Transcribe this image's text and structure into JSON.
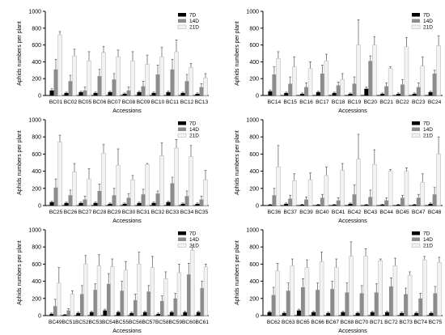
{
  "legend": [
    {
      "key": "d7",
      "label": "7D",
      "color": "#000000"
    },
    {
      "key": "d14",
      "label": "14D",
      "color": "#8c8c8c"
    },
    {
      "key": "d21",
      "label": "21D",
      "color": "#f2f2f2"
    }
  ],
  "chart_data": [
    {
      "type": "bar",
      "ylabel": "Aphids numbers per plant",
      "xlabel": "Accessions",
      "ylim": [
        0,
        1000
      ],
      "yticks": [
        0,
        200,
        400,
        600,
        800,
        1000
      ],
      "categories": [
        "BC01",
        "BC02",
        "BC05",
        "BC06",
        "BC07",
        "BC08",
        "BC09",
        "BC10",
        "BC11",
        "BC12",
        "BC13"
      ],
      "series": [
        {
          "name": "7D",
          "values": [
            60,
            30,
            40,
            30,
            40,
            20,
            40,
            30,
            40,
            30,
            20
          ],
          "errors": [
            20,
            10,
            10,
            10,
            10,
            10,
            10,
            10,
            15,
            10,
            10
          ]
        },
        {
          "name": "14D",
          "values": [
            310,
            170,
            60,
            230,
            190,
            60,
            110,
            250,
            310,
            170,
            100
          ],
          "errors": [
            120,
            70,
            40,
            80,
            70,
            40,
            60,
            110,
            120,
            80,
            40
          ]
        },
        {
          "name": "21D",
          "values": [
            720,
            470,
            410,
            510,
            460,
            410,
            370,
            460,
            520,
            330,
            210
          ],
          "errors": [
            40,
            80,
            110,
            70,
            80,
            110,
            110,
            110,
            140,
            50,
            50
          ]
        }
      ]
    },
    {
      "type": "bar",
      "ylabel": "Aphids numbers per plant",
      "xlabel": "Accessions",
      "ylim": [
        0,
        1000
      ],
      "yticks": [
        0,
        200,
        400,
        600,
        800,
        1000
      ],
      "categories": [
        "BC14",
        "BC15",
        "BC16",
        "BC17",
        "BC18",
        "BC19",
        "BC20",
        "BC21",
        "BC22",
        "BC23",
        "BC24"
      ],
      "series": [
        {
          "name": "7D",
          "values": [
            50,
            30,
            20,
            40,
            30,
            20,
            80,
            20,
            20,
            20,
            40
          ],
          "errors": [
            15,
            10,
            10,
            10,
            10,
            10,
            20,
            10,
            10,
            10,
            10
          ]
        },
        {
          "name": "14D",
          "values": [
            250,
            140,
            100,
            260,
            120,
            140,
            410,
            110,
            130,
            100,
            260
          ],
          "errors": [
            90,
            80,
            50,
            100,
            40,
            80,
            60,
            40,
            60,
            50,
            40
          ]
        },
        {
          "name": "21D",
          "values": [
            440,
            340,
            320,
            410,
            190,
            600,
            600,
            320,
            580,
            350,
            590
          ],
          "errors": [
            80,
            120,
            80,
            80,
            70,
            300,
            100,
            20,
            110,
            110,
            120
          ]
        }
      ]
    },
    {
      "type": "bar",
      "ylabel": "Aphids numbers per plant",
      "xlabel": "Accessions",
      "ylim": [
        0,
        1000
      ],
      "yticks": [
        0,
        200,
        400,
        600,
        800,
        1000
      ],
      "categories": [
        "BC25",
        "BC26",
        "BC27",
        "BC28",
        "BC29",
        "BC30",
        "BC31",
        "BC32",
        "BC33",
        "BC34",
        "BC35"
      ],
      "series": [
        {
          "name": "7D",
          "values": [
            40,
            30,
            30,
            30,
            20,
            20,
            30,
            30,
            40,
            20,
            20
          ],
          "errors": [
            10,
            10,
            10,
            10,
            10,
            10,
            10,
            10,
            10,
            10,
            10
          ]
        },
        {
          "name": "14D",
          "values": [
            210,
            120,
            70,
            170,
            120,
            90,
            130,
            140,
            260,
            110,
            70
          ],
          "errors": [
            100,
            60,
            40,
            80,
            80,
            50,
            60,
            30,
            70,
            60,
            40
          ]
        },
        {
          "name": "21D",
          "values": [
            740,
            390,
            310,
            610,
            470,
            300,
            480,
            580,
            670,
            570,
            300
          ],
          "errors": [
            80,
            100,
            120,
            100,
            190,
            50,
            10,
            150,
            100,
            130,
            110
          ]
        }
      ]
    },
    {
      "type": "bar",
      "ylabel": "Aphids numbers per plant",
      "xlabel": "Accessions",
      "ylim": [
        0,
        1000
      ],
      "yticks": [
        0,
        200,
        400,
        600,
        800,
        1000
      ],
      "categories": [
        "BC36",
        "BC37",
        "BC39",
        "BC40",
        "BC41",
        "BC42",
        "BC43",
        "BC44",
        "BC45",
        "BC47",
        "BC48"
      ],
      "series": [
        {
          "name": "7D",
          "values": [
            10,
            20,
            10,
            10,
            10,
            20,
            10,
            10,
            10,
            10,
            20
          ],
          "errors": [
            5,
            10,
            5,
            5,
            5,
            10,
            5,
            5,
            5,
            5,
            10
          ]
        },
        {
          "name": "14D",
          "values": [
            120,
            80,
            70,
            90,
            60,
            130,
            100,
            60,
            90,
            90,
            130
          ],
          "errors": [
            80,
            40,
            30,
            40,
            30,
            110,
            80,
            30,
            30,
            40,
            80
          ]
        },
        {
          "name": "21D",
          "values": [
            450,
            290,
            300,
            350,
            410,
            540,
            480,
            400,
            400,
            270,
            600
          ],
          "errors": [
            250,
            80,
            80,
            100,
            80,
            290,
            170,
            20,
            40,
            100,
            200
          ]
        }
      ]
    },
    {
      "type": "bar",
      "ylabel": "Aphids numbers per plant",
      "xlabel": "Accessions",
      "ylim": [
        0,
        1000
      ],
      "yticks": [
        0,
        200,
        400,
        600,
        800,
        1000
      ],
      "categories": [
        "BC49",
        "BC51",
        "BC52",
        "BC53",
        "BC54",
        "BC55",
        "BC56",
        "BC57",
        "BC58",
        "BC59",
        "BC60",
        "BC61"
      ],
      "series": [
        {
          "name": "7D",
          "values": [
            20,
            10,
            30,
            40,
            60,
            40,
            30,
            40,
            20,
            40,
            40,
            40
          ],
          "errors": [
            10,
            5,
            10,
            10,
            15,
            10,
            10,
            10,
            10,
            10,
            10,
            10
          ]
        },
        {
          "name": "14D",
          "values": [
            110,
            60,
            250,
            300,
            370,
            290,
            180,
            280,
            170,
            200,
            480,
            320
          ],
          "errors": [
            80,
            20,
            100,
            70,
            120,
            110,
            70,
            70,
            60,
            60,
            130,
            80
          ]
        },
        {
          "name": "21D",
          "values": [
            380,
            250,
            600,
            580,
            570,
            530,
            600,
            560,
            430,
            500,
            760,
            570
          ],
          "errors": [
            180,
            40,
            100,
            130,
            90,
            100,
            140,
            130,
            80,
            100,
            60,
            30
          ]
        }
      ]
    },
    {
      "type": "bar",
      "ylabel": "Aphids numbers per plant",
      "xlabel": "Accessions",
      "ylim": [
        0,
        1000
      ],
      "yticks": [
        0,
        200,
        400,
        600,
        800,
        1000
      ],
      "categories": [
        "BC62",
        "BC63",
        "BC65",
        "BC66",
        "BC67",
        "BC68",
        "BC70",
        "BC71",
        "BC72",
        "BC73",
        "BC74",
        "BC75"
      ],
      "series": [
        {
          "name": "7D",
          "values": [
            40,
            30,
            60,
            40,
            30,
            40,
            30,
            40,
            40,
            30,
            30,
            30
          ],
          "errors": [
            10,
            10,
            15,
            10,
            10,
            10,
            10,
            10,
            10,
            10,
            10,
            10
          ]
        },
        {
          "name": "14D",
          "values": [
            240,
            290,
            330,
            300,
            310,
            270,
            260,
            270,
            340,
            250,
            200,
            260
          ],
          "errors": [
            90,
            90,
            100,
            80,
            90,
            110,
            90,
            100,
            100,
            70,
            60,
            80
          ]
        },
        {
          "name": "21D",
          "values": [
            520,
            580,
            560,
            630,
            560,
            690,
            690,
            640,
            580,
            470,
            650,
            620
          ],
          "errors": [
            90,
            80,
            90,
            110,
            100,
            170,
            90,
            20,
            90,
            40,
            40,
            60
          ]
        }
      ]
    }
  ]
}
